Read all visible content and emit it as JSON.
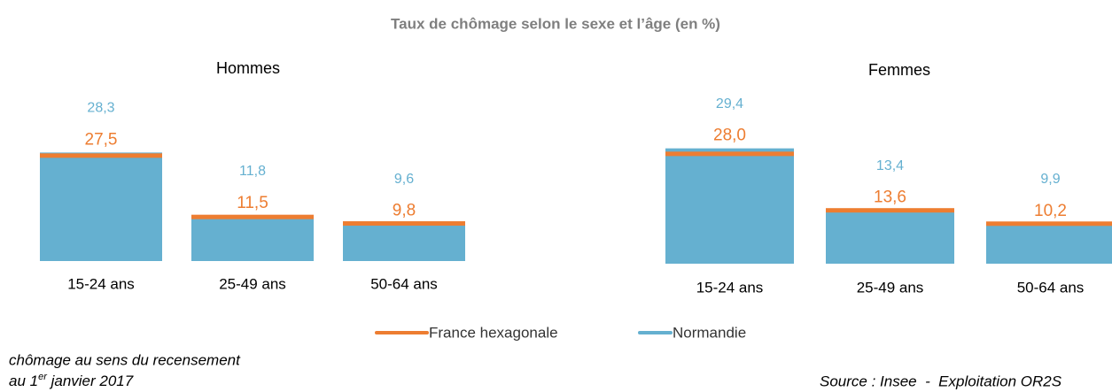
{
  "title": "Taux de chômage selon le sexe et l’âge (en %)",
  "note": {
    "line1": "chômage au sens du recensement",
    "line2_start": "au 1",
    "line2_sup": "er",
    "line2_end": " janvier 2017"
  },
  "source": "Source : Insee  -  Exploitation OR2S",
  "chart_data": [
    {
      "type": "bar",
      "title": "Hommes",
      "categories": [
        "15-24 ans",
        "25-49 ans",
        "50-64 ans"
      ],
      "ylim": [
        0,
        30
      ],
      "series": [
        {
          "name": "France hexagonale",
          "color": "#ed7d31",
          "values": [
            27.5,
            11.5,
            9.8
          ],
          "value_labels": [
            "27,5",
            "11,5",
            "9,8"
          ]
        },
        {
          "name": "Normandie",
          "color": "#65b0d0",
          "values": [
            28.3,
            11.8,
            9.6
          ],
          "value_labels": [
            "28,3",
            "11,8",
            "9,6"
          ]
        }
      ]
    },
    {
      "type": "bar",
      "title": "Femmes",
      "categories": [
        "15-24 ans",
        "25-49 ans",
        "50-64 ans"
      ],
      "ylim": [
        0,
        30
      ],
      "series": [
        {
          "name": "France hexagonale",
          "color": "#ed7d31",
          "values": [
            28.0,
            13.6,
            10.2
          ],
          "value_labels": [
            "28,0",
            "13,6",
            "10,2"
          ]
        },
        {
          "name": "Normandie",
          "color": "#65b0d0",
          "values": [
            29.4,
            13.4,
            9.9
          ],
          "value_labels": [
            "29,4",
            "13,4",
            "9,9"
          ]
        }
      ]
    }
  ]
}
